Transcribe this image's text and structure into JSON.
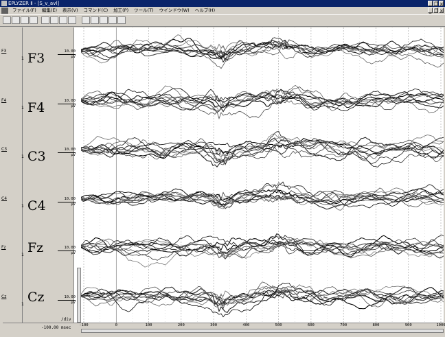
{
  "window": {
    "title": "EPLYZER Ⅱ - [S_v_avl]"
  },
  "menu": [
    "ファイル(F)",
    "編集(E)",
    "表示(V)",
    "コマンド(C)",
    "加工(P)",
    "ツール(T)",
    "ウインドウ(W)",
    "ヘルプ(H)"
  ],
  "toolbar": {
    "buttons": [
      "open-icon",
      "save-icon",
      "print-icon",
      "page-icon",
      "wave1-icon",
      "wave2-icon",
      "wave3-icon",
      "wave4-icon",
      "cursor1-icon",
      "cursor2-icon",
      "cursor3-icon",
      "marker-icon",
      "grid-icon"
    ]
  },
  "channels": [
    {
      "code": "F3",
      "num": "1",
      "label": "F3",
      "amp": "10.00",
      "unit": "μV"
    },
    {
      "code": "F4",
      "num": "1",
      "label": "F4",
      "amp": "10.00",
      "unit": "μV"
    },
    {
      "code": "C3",
      "num": "1",
      "label": "C3",
      "amp": "10.00",
      "unit": "μV"
    },
    {
      "code": "C4",
      "num": "1",
      "label": "C4",
      "amp": "10.00",
      "unit": "μV"
    },
    {
      "code": "Fz",
      "num": "1",
      "label": "Fz",
      "amp": "10.00",
      "unit": "μV"
    },
    {
      "code": "Cz",
      "num": "1",
      "label": "Cz",
      "amp": "10.00",
      "unit": "μV"
    }
  ],
  "xaxis": {
    "start_label": "-100.00 msec",
    "per_div": "/div",
    "ticks": [
      "-100",
      "0",
      "100",
      "200",
      "300",
      "400",
      "500",
      "600",
      "700",
      "800",
      "900",
      "1000"
    ]
  }
}
